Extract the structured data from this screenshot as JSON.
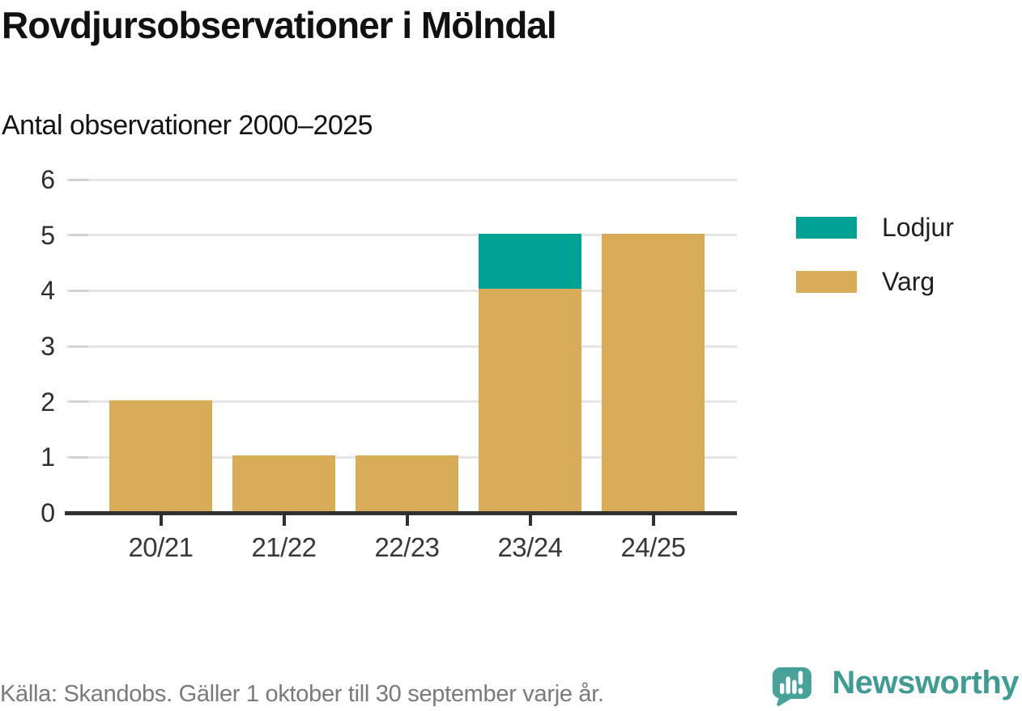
{
  "header": {
    "title": "Rovdjursobservationer i Mölndal",
    "subtitle": "Antal observationer 2000–2025"
  },
  "chart_data": {
    "type": "bar",
    "stacked": true,
    "title": "Rovdjursobservationer i Mölndal",
    "subtitle": "Antal observationer 2000–2025",
    "categories": [
      "20/21",
      "21/22",
      "22/23",
      "23/24",
      "24/25"
    ],
    "series": [
      {
        "name": "Varg",
        "color": "#d8ab57",
        "values": [
          2,
          1,
          1,
          4,
          5
        ]
      },
      {
        "name": "Lodjur",
        "color": "#00a296",
        "values": [
          0,
          0,
          0,
          1,
          0
        ]
      }
    ],
    "totals": [
      2,
      1,
      1,
      5,
      5
    ],
    "legend": [
      {
        "label": "Lodjur",
        "color": "#00a296"
      },
      {
        "label": "Varg",
        "color": "#d8ab57"
      }
    ],
    "legend_position": "right",
    "ylim": [
      0,
      6
    ],
    "yticks": [
      0,
      1,
      2,
      3,
      4,
      5,
      6
    ],
    "xlabel": "",
    "ylabel": "",
    "grid": "horizontal"
  },
  "footer": {
    "source": "Källa: Skandobs. Gäller 1 oktober till 30 september varje år.",
    "brand": "Newsworthy"
  },
  "colors": {
    "lodjur_teal": "#00a296",
    "varg_gold": "#d8ab57",
    "brand_teal": "#3f9c95",
    "brand_icon_teal": "#47a29b",
    "gridline_gray": "#e6e6e6",
    "axis_dark": "#2f2f2f",
    "source_gray": "#7a7a7a"
  }
}
